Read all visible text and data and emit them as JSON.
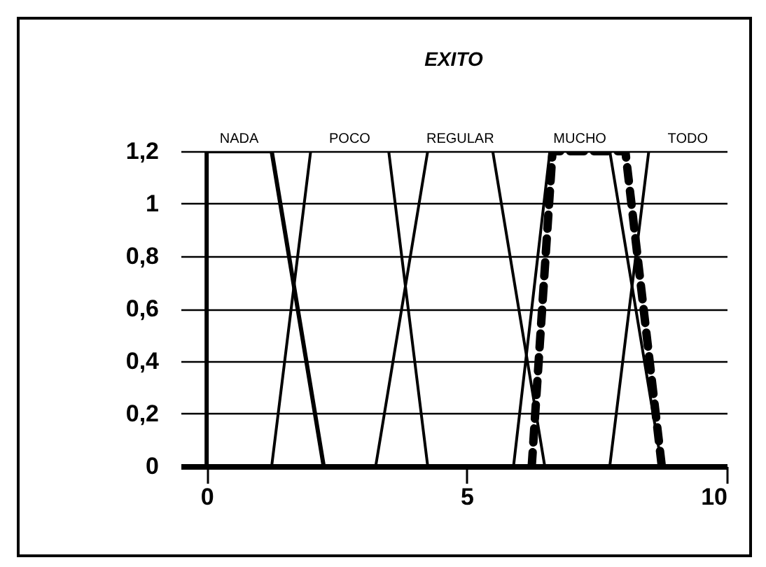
{
  "chart_data": {
    "type": "line",
    "title": "EXITO",
    "xlim": [
      -0.5,
      10
    ],
    "xticks": [
      0,
      5,
      10
    ],
    "ylim": [
      0,
      1.2
    ],
    "yticks": [
      0,
      {
        "value": 0.2,
        "label": "0,2"
      },
      {
        "value": 0.4,
        "label": "0,4"
      },
      {
        "value": 0.6,
        "label": "0,6"
      },
      {
        "value": 0.8,
        "label": "0,8"
      },
      1,
      {
        "value": 1.2,
        "label": "1,2"
      }
    ],
    "grid": "y",
    "marker": "none",
    "series": [
      {
        "name": "NADA",
        "color": "#000000",
        "x": [
          0,
          0,
          1.25,
          2.25
        ],
        "values": [
          0,
          1.2,
          1.2,
          0
        ]
      },
      {
        "name": "POCO",
        "color": "#000000",
        "x": [
          1.25,
          2,
          3.5,
          4.25
        ],
        "values": [
          0,
          1.2,
          1.2,
          0
        ]
      },
      {
        "name": "REGULAR",
        "color": "#000000",
        "x": [
          3.25,
          4.25,
          5.5,
          6.5
        ],
        "values": [
          0,
          1.2,
          1.2,
          0
        ]
      },
      {
        "name": "MUCHO",
        "color": "#000000",
        "x": [
          5.9,
          6.6,
          7.75,
          8.75
        ],
        "values": [
          0,
          1.2,
          1.2,
          0
        ]
      },
      {
        "name": "TODO",
        "color": "#000000",
        "x": [
          7.75,
          8.5,
          10
        ],
        "values": [
          0,
          1.2,
          1.2
        ]
      },
      {
        "color": "#000000",
        "line_style": "dashed",
        "x": [
          6.25,
          6.65,
          7.8,
          8.05,
          8.75
        ],
        "values": [
          0,
          1.2,
          1.2,
          1.2,
          0
        ]
      }
    ]
  }
}
